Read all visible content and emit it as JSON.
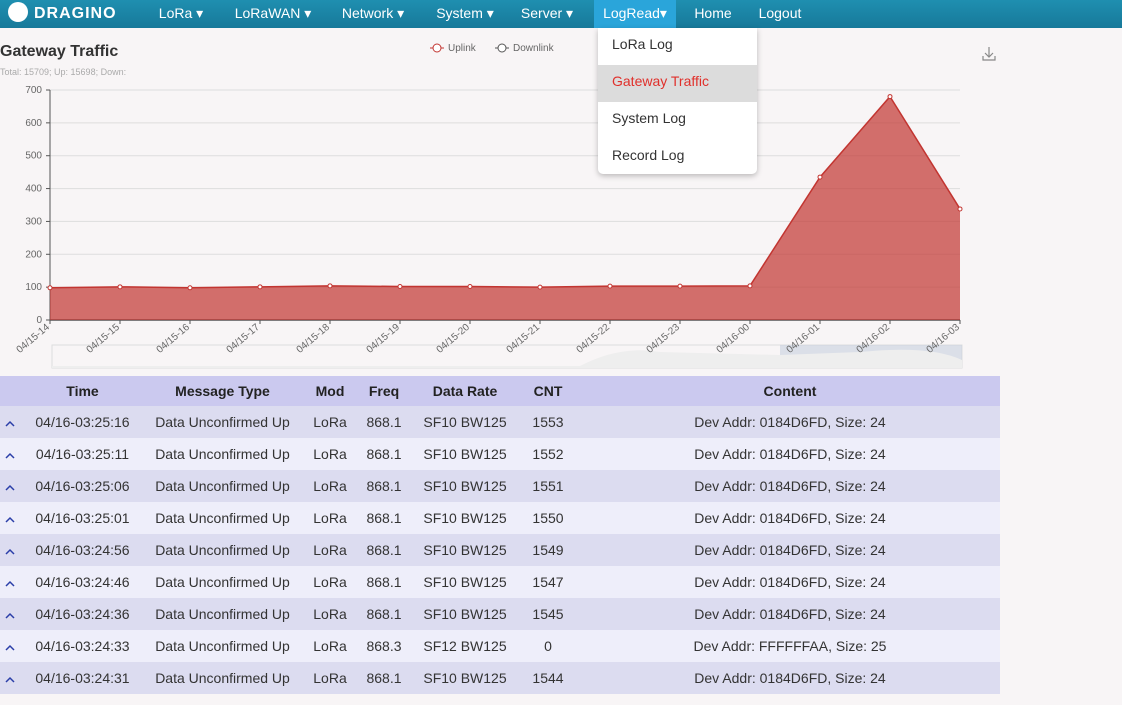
{
  "nav": {
    "logo": "DRAGINO",
    "items": [
      "LoRa ▾",
      "LoRaWAN ▾",
      "Network ▾",
      "System ▾",
      "Server ▾",
      "LogRead▾",
      "Home",
      "Logout"
    ]
  },
  "menu": {
    "items": [
      "LoRa Log",
      "Gateway Traffic",
      "System Log",
      "Record Log"
    ]
  },
  "chart_data": {
    "type": "area",
    "title": "Gateway Traffic",
    "subtitle": "Total: 15709; Up: 15698; Down:",
    "categories": [
      "04/15-14",
      "04/15-15",
      "04/15-16",
      "04/15-17",
      "04/15-18",
      "04/15-19",
      "04/15-20",
      "04/15-21",
      "04/15-22",
      "04/15-23",
      "04/16-00",
      "04/16-01",
      "04/16-02",
      "04/16-03"
    ],
    "series": [
      {
        "name": "Uplink",
        "color": "#c23531",
        "values": [
          98,
          101,
          98,
          101,
          104,
          102,
          102,
          100,
          103,
          103,
          104,
          435,
          680,
          338
        ]
      },
      {
        "name": "Downlink",
        "color": "#555555",
        "values": [
          0,
          0,
          0,
          0,
          0,
          0,
          0,
          0,
          0,
          0,
          0,
          0,
          0,
          0
        ]
      }
    ],
    "ylim": [
      0,
      700
    ],
    "yticks": [
      0,
      100,
      200,
      300,
      400,
      500,
      600,
      700
    ],
    "grid": true,
    "legend": "top"
  },
  "table": {
    "headers": [
      "Time",
      "Message Type",
      "Mod",
      "Freq",
      "Data Rate",
      "CNT",
      "Content"
    ],
    "rows": [
      [
        "04/16-03:25:16",
        "Data Unconfirmed Up",
        "LoRa",
        "868.1",
        "SF10 BW125",
        "1553",
        "Dev Addr: 0184D6FD, Size: 24"
      ],
      [
        "04/16-03:25:11",
        "Data Unconfirmed Up",
        "LoRa",
        "868.1",
        "SF10 BW125",
        "1552",
        "Dev Addr: 0184D6FD, Size: 24"
      ],
      [
        "04/16-03:25:06",
        "Data Unconfirmed Up",
        "LoRa",
        "868.1",
        "SF10 BW125",
        "1551",
        "Dev Addr: 0184D6FD, Size: 24"
      ],
      [
        "04/16-03:25:01",
        "Data Unconfirmed Up",
        "LoRa",
        "868.1",
        "SF10 BW125",
        "1550",
        "Dev Addr: 0184D6FD, Size: 24"
      ],
      [
        "04/16-03:24:56",
        "Data Unconfirmed Up",
        "LoRa",
        "868.1",
        "SF10 BW125",
        "1549",
        "Dev Addr: 0184D6FD, Size: 24"
      ],
      [
        "04/16-03:24:46",
        "Data Unconfirmed Up",
        "LoRa",
        "868.1",
        "SF10 BW125",
        "1547",
        "Dev Addr: 0184D6FD, Size: 24"
      ],
      [
        "04/16-03:24:36",
        "Data Unconfirmed Up",
        "LoRa",
        "868.1",
        "SF10 BW125",
        "1545",
        "Dev Addr: 0184D6FD, Size: 24"
      ],
      [
        "04/16-03:24:33",
        "Data Unconfirmed Up",
        "LoRa",
        "868.3",
        "SF12 BW125",
        "0",
        "Dev Addr: FFFFFFAA, Size: 25"
      ],
      [
        "04/16-03:24:31",
        "Data Unconfirmed Up",
        "LoRa",
        "868.1",
        "SF10 BW125",
        "1544",
        "Dev Addr: 0184D6FD, Size: 24"
      ]
    ]
  }
}
